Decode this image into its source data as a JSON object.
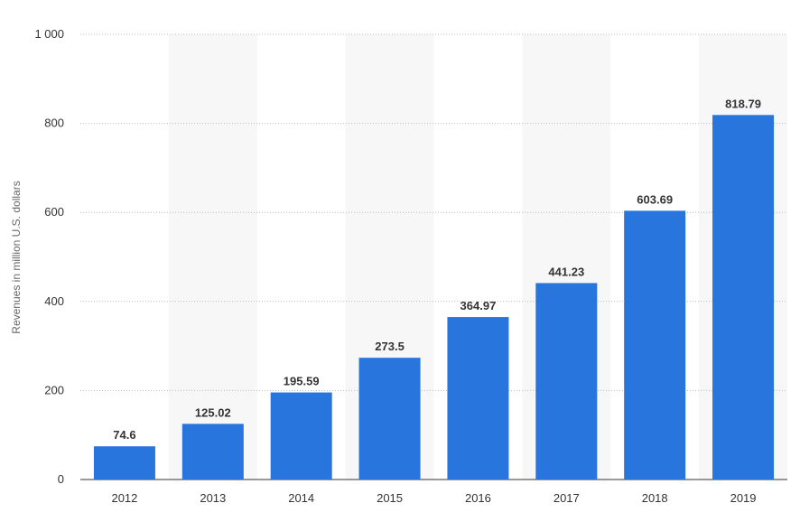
{
  "chart_data": {
    "type": "bar",
    "title": "",
    "xlabel": "",
    "ylabel": "Revenues in million U.S. dollars",
    "categories": [
      "2012",
      "2013",
      "2014",
      "2015",
      "2016",
      "2017",
      "2018",
      "2019"
    ],
    "values": [
      74.6,
      125.02,
      195.59,
      273.5,
      364.97,
      441.23,
      603.69,
      818.79
    ],
    "value_labels": [
      "74.6",
      "125.02",
      "195.59",
      "273.5",
      "364.97",
      "441.23",
      "603.69",
      "818.79"
    ],
    "ylim": [
      0,
      1000
    ],
    "yticks": [
      0,
      200,
      400,
      600,
      800,
      1000
    ],
    "ytick_labels": [
      "0",
      "200",
      "400",
      "600",
      "800",
      "1 000"
    ],
    "grid": true,
    "grid_style": "dotted",
    "alternating_column_bands": true,
    "legend": "none",
    "colors": {
      "bar": "#2875DD",
      "band": "#F7F7F7",
      "grid": "#BBBBBB",
      "text": "#333333",
      "axis_title": "#666666"
    }
  }
}
